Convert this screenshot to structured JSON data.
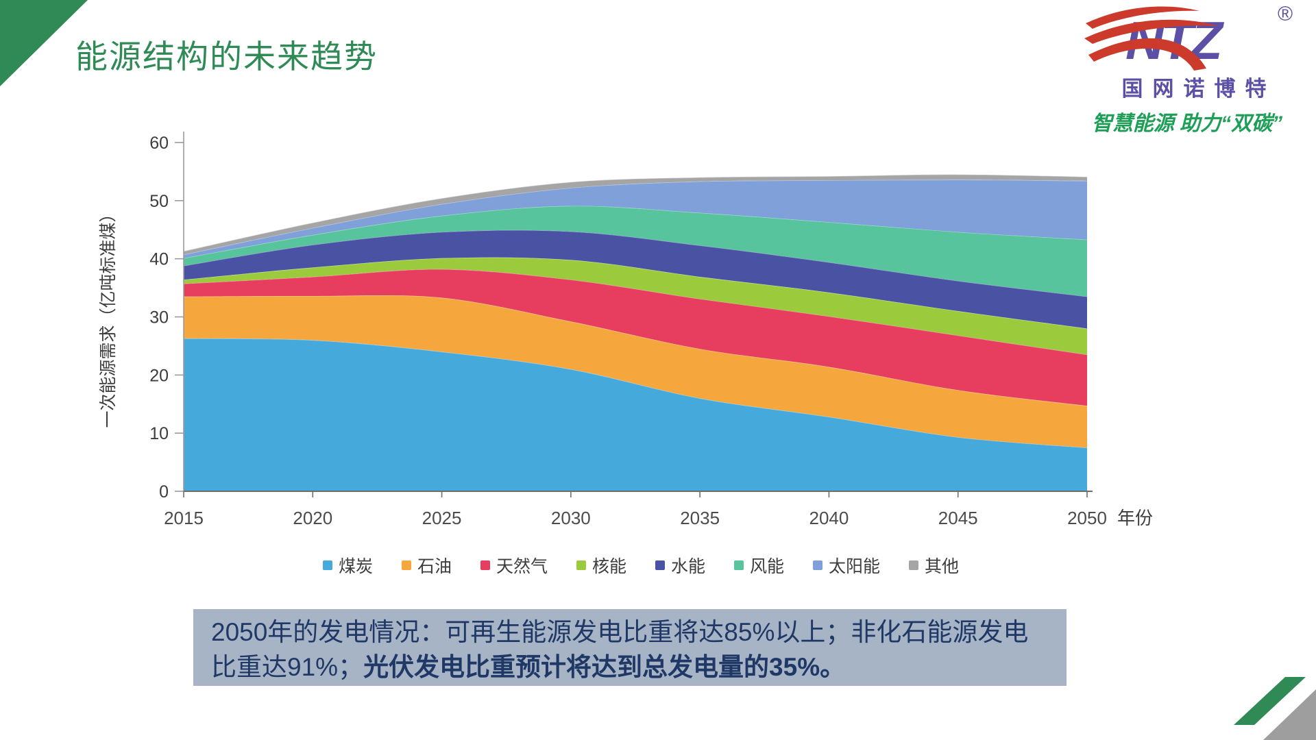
{
  "slide": {
    "title": "能源结构的未来趋势",
    "logo": {
      "mark": "NTZ",
      "registered": "®",
      "company": "国网诺博特",
      "tagline": "智慧能源 助力“双碳”"
    },
    "note": {
      "normal": "2050年的发电情况：可再生能源发电比重将达85%以上；非化石能源发电比重达91%；",
      "bold": "光伏发电比重预计将达到总发电量的35%。"
    }
  },
  "chart_data": {
    "type": "area",
    "stacked": true,
    "title": "",
    "x": [
      2015,
      2020,
      2025,
      2030,
      2035,
      2040,
      2045,
      2050
    ],
    "xlabel": "年份",
    "ylabel": "一次能源需求（亿吨标准煤）",
    "ylim": [
      0,
      60
    ],
    "yticks": [
      0,
      10,
      20,
      30,
      40,
      50,
      60
    ],
    "grid": false,
    "legend_position": "bottom",
    "series": [
      {
        "name": "煤炭",
        "color": "#45a9dc",
        "values": [
          26.3,
          26.0,
          24.0,
          21.0,
          16.0,
          12.8,
          9.3,
          7.5
        ]
      },
      {
        "name": "石油",
        "color": "#f5a73e",
        "values": [
          7.2,
          7.6,
          9.3,
          8.2,
          8.5,
          8.6,
          8.1,
          7.2
        ]
      },
      {
        "name": "天然气",
        "color": "#e73d5f",
        "values": [
          2.2,
          3.3,
          4.9,
          7.2,
          8.6,
          8.7,
          9.4,
          8.8
        ]
      },
      {
        "name": "核能",
        "color": "#9bcb3d",
        "values": [
          0.7,
          1.6,
          1.9,
          3.4,
          3.8,
          4.1,
          4.2,
          4.5
        ]
      },
      {
        "name": "水能",
        "color": "#4a52a3",
        "values": [
          2.4,
          3.9,
          4.5,
          4.9,
          5.4,
          5.2,
          5.2,
          5.5
        ]
      },
      {
        "name": "风能",
        "color": "#57c49e",
        "values": [
          1.3,
          1.7,
          2.8,
          4.4,
          5.6,
          6.9,
          8.4,
          9.8
        ]
      },
      {
        "name": "太阳能",
        "color": "#7fa0d8",
        "values": [
          0.6,
          1.2,
          2.0,
          3.1,
          5.4,
          7.2,
          9.0,
          10.1
        ]
      },
      {
        "name": "其他",
        "color": "#a5a5a5",
        "values": [
          0.6,
          0.9,
          1.0,
          1.0,
          0.7,
          0.7,
          0.9,
          0.7
        ]
      }
    ],
    "colors": {
      "title_green": "#2f8a56",
      "logo_purple": "#5b50a5",
      "logo_red": "#cb3a2a",
      "tagline_green": "#1e9e57",
      "note_background": "#a7b4c6",
      "note_text": "#1f3866",
      "corner_gray": "#9e9e9e"
    }
  }
}
